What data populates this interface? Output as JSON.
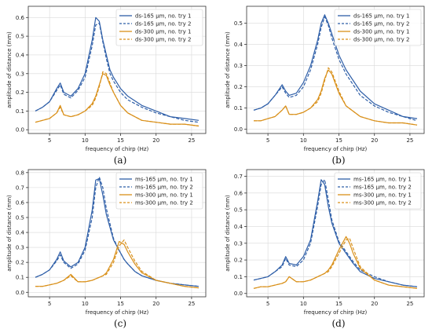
{
  "colors": {
    "blue": "#2f5fa8",
    "orange": "#d9901a"
  },
  "chart_data": [
    {
      "type": "line",
      "caption": "(a)",
      "xlabel": "frequency of chirp (Hz)",
      "ylabel": "amplitude of distance (mm)",
      "xlim": [
        2,
        27
      ],
      "ylim": [
        -0.02,
        0.66
      ],
      "xticks": [
        5,
        10,
        15,
        20,
        25
      ],
      "yticks": [
        0.0,
        0.1,
        0.2,
        0.3,
        0.4,
        0.5,
        0.6
      ],
      "grid": true,
      "legend_position": "top-right",
      "x": [
        3,
        4,
        5,
        6,
        6.5,
        7,
        8,
        9,
        10,
        11,
        11.5,
        12,
        12.5,
        13,
        13.5,
        14,
        15,
        16,
        18,
        20,
        22,
        24,
        26
      ],
      "series": [
        {
          "name": "ds-165 μm, no. try 1",
          "color": "blue",
          "dash": "solid",
          "values": [
            0.1,
            0.12,
            0.15,
            0.22,
            0.25,
            0.2,
            0.18,
            0.22,
            0.3,
            0.48,
            0.6,
            0.58,
            0.48,
            0.4,
            0.32,
            0.28,
            0.22,
            0.18,
            0.13,
            0.1,
            0.07,
            0.06,
            0.05
          ]
        },
        {
          "name": "ds-165 μm, no. try 2",
          "color": "blue",
          "dash": "dashed",
          "values": [
            0.1,
            0.12,
            0.15,
            0.21,
            0.24,
            0.19,
            0.17,
            0.21,
            0.28,
            0.45,
            0.56,
            0.57,
            0.47,
            0.38,
            0.3,
            0.26,
            0.2,
            0.16,
            0.12,
            0.09,
            0.07,
            0.05,
            0.04
          ]
        },
        {
          "name": "ds-300 μm, no. try 1",
          "color": "orange",
          "dash": "solid",
          "values": [
            0.04,
            0.05,
            0.06,
            0.09,
            0.13,
            0.08,
            0.07,
            0.08,
            0.1,
            0.14,
            0.18,
            0.24,
            0.3,
            0.29,
            0.24,
            0.2,
            0.13,
            0.09,
            0.05,
            0.04,
            0.03,
            0.03,
            0.02
          ]
        },
        {
          "name": "ds-300 μm, no. try 2",
          "color": "orange",
          "dash": "dashed",
          "values": [
            0.04,
            0.05,
            0.06,
            0.09,
            0.12,
            0.08,
            0.07,
            0.08,
            0.1,
            0.13,
            0.17,
            0.23,
            0.31,
            0.3,
            0.25,
            0.2,
            0.13,
            0.09,
            0.05,
            0.04,
            0.03,
            0.03,
            0.02
          ]
        }
      ]
    },
    {
      "type": "line",
      "caption": "(b)",
      "xlabel": "frequency of chirp (Hz)",
      "ylabel": "amplitude of distance (mm)",
      "xlim": [
        2,
        27
      ],
      "ylim": [
        -0.02,
        0.58
      ],
      "xticks": [
        5,
        10,
        15,
        20,
        25
      ],
      "yticks": [
        0.0,
        0.1,
        0.2,
        0.3,
        0.4,
        0.5
      ],
      "grid": true,
      "legend_position": "top-right",
      "x": [
        3,
        4,
        5,
        6,
        7,
        7.5,
        8,
        9,
        10,
        11,
        12,
        12.5,
        13,
        13.5,
        14,
        15,
        16,
        18,
        20,
        22,
        24,
        26
      ],
      "series": [
        {
          "name": "ds-165 μm, no. try 1",
          "color": "blue",
          "dash": "solid",
          "values": [
            0.09,
            0.1,
            0.12,
            0.16,
            0.21,
            0.18,
            0.16,
            0.17,
            0.22,
            0.3,
            0.42,
            0.5,
            0.54,
            0.5,
            0.45,
            0.35,
            0.28,
            0.18,
            0.12,
            0.09,
            0.06,
            0.05
          ]
        },
        {
          "name": "ds-165 μm, no. try 2",
          "color": "blue",
          "dash": "dashed",
          "values": [
            0.09,
            0.1,
            0.12,
            0.16,
            0.2,
            0.17,
            0.15,
            0.16,
            0.2,
            0.28,
            0.4,
            0.48,
            0.53,
            0.49,
            0.43,
            0.33,
            0.26,
            0.16,
            0.11,
            0.08,
            0.06,
            0.04
          ]
        },
        {
          "name": "ds-300 μm, no. try 1",
          "color": "orange",
          "dash": "solid",
          "values": [
            0.04,
            0.04,
            0.05,
            0.06,
            0.09,
            0.11,
            0.07,
            0.07,
            0.08,
            0.1,
            0.14,
            0.18,
            0.24,
            0.28,
            0.26,
            0.17,
            0.11,
            0.06,
            0.04,
            0.03,
            0.03,
            0.02
          ]
        },
        {
          "name": "ds-300 μm, no. try 2",
          "color": "orange",
          "dash": "dashed",
          "values": [
            0.04,
            0.04,
            0.05,
            0.06,
            0.09,
            0.11,
            0.07,
            0.07,
            0.08,
            0.1,
            0.13,
            0.17,
            0.23,
            0.29,
            0.27,
            0.18,
            0.11,
            0.06,
            0.04,
            0.03,
            0.03,
            0.02
          ]
        }
      ]
    },
    {
      "type": "line",
      "caption": "(c)",
      "xlabel": "frequency of chirp (Hz)",
      "ylabel": "amplitude of distance (mm)",
      "xlim": [
        2,
        27
      ],
      "ylim": [
        -0.03,
        0.82
      ],
      "xticks": [
        5,
        10,
        15,
        20,
        25
      ],
      "yticks": [
        0.0,
        0.1,
        0.2,
        0.3,
        0.4,
        0.5,
        0.6,
        0.7,
        0.8
      ],
      "grid": true,
      "legend_position": "top-right",
      "x": [
        3,
        4,
        5,
        6,
        6.5,
        7,
        8,
        9,
        10,
        11,
        11.5,
        12,
        12.5,
        13,
        14,
        14.8,
        15.5,
        16,
        17,
        18,
        20,
        22,
        24,
        26
      ],
      "series": [
        {
          "name": "ms-165 μm, no. try 1",
          "color": "blue",
          "dash": "solid",
          "values": [
            0.1,
            0.12,
            0.15,
            0.22,
            0.27,
            0.21,
            0.17,
            0.2,
            0.3,
            0.55,
            0.75,
            0.76,
            0.65,
            0.52,
            0.35,
            0.28,
            0.22,
            0.19,
            0.14,
            0.11,
            0.08,
            0.06,
            0.05,
            0.04
          ]
        },
        {
          "name": "ms-165 μm, no. try 2",
          "color": "blue",
          "dash": "dashed",
          "values": [
            0.1,
            0.12,
            0.15,
            0.21,
            0.25,
            0.2,
            0.16,
            0.19,
            0.28,
            0.5,
            0.7,
            0.77,
            0.7,
            0.56,
            0.36,
            0.28,
            0.22,
            0.19,
            0.14,
            0.11,
            0.08,
            0.06,
            0.05,
            0.04
          ]
        },
        {
          "name": "ms-300 μm, no. try 1",
          "color": "orange",
          "dash": "solid",
          "values": [
            0.04,
            0.04,
            0.05,
            0.06,
            0.07,
            0.08,
            0.12,
            0.07,
            0.07,
            0.08,
            0.09,
            0.1,
            0.11,
            0.13,
            0.22,
            0.34,
            0.32,
            0.27,
            0.19,
            0.13,
            0.08,
            0.06,
            0.04,
            0.03
          ]
        },
        {
          "name": "ms-300 μm, no. try 2",
          "color": "orange",
          "dash": "dashed",
          "values": [
            0.04,
            0.04,
            0.05,
            0.06,
            0.07,
            0.08,
            0.11,
            0.07,
            0.07,
            0.08,
            0.09,
            0.1,
            0.11,
            0.12,
            0.2,
            0.31,
            0.35,
            0.3,
            0.21,
            0.14,
            0.08,
            0.06,
            0.04,
            0.03
          ]
        }
      ]
    },
    {
      "type": "line",
      "caption": "(d)",
      "xlabel": "frequency of chirp (Hz)",
      "ylabel": "amplitude of distance (mm)",
      "xlim": [
        2,
        27
      ],
      "ylim": [
        -0.02,
        0.74
      ],
      "xticks": [
        5,
        10,
        15,
        20,
        25
      ],
      "yticks": [
        0.0,
        0.1,
        0.2,
        0.3,
        0.4,
        0.5,
        0.6,
        0.7
      ],
      "grid": true,
      "legend_position": "top-right",
      "x": [
        3,
        4,
        5,
        6,
        7,
        7.5,
        8,
        9,
        10,
        11,
        12,
        12.5,
        13,
        13.5,
        14,
        15,
        16,
        16.5,
        17,
        18,
        20,
        22,
        24,
        26
      ],
      "series": [
        {
          "name": "ms-165 μm, no. try 1",
          "color": "blue",
          "dash": "solid",
          "values": [
            0.08,
            0.09,
            0.1,
            0.13,
            0.17,
            0.22,
            0.18,
            0.17,
            0.22,
            0.32,
            0.55,
            0.68,
            0.65,
            0.52,
            0.42,
            0.3,
            0.24,
            0.21,
            0.18,
            0.13,
            0.09,
            0.07,
            0.05,
            0.04
          ]
        },
        {
          "name": "ms-165 μm, no. try 2",
          "color": "blue",
          "dash": "dashed",
          "values": [
            0.08,
            0.09,
            0.1,
            0.13,
            0.16,
            0.21,
            0.17,
            0.16,
            0.2,
            0.3,
            0.52,
            0.65,
            0.68,
            0.56,
            0.44,
            0.31,
            0.25,
            0.22,
            0.19,
            0.14,
            0.1,
            0.07,
            0.05,
            0.04
          ]
        },
        {
          "name": "ms-300 μm, no. try 1",
          "color": "orange",
          "dash": "solid",
          "values": [
            0.03,
            0.04,
            0.04,
            0.05,
            0.06,
            0.07,
            0.1,
            0.07,
            0.07,
            0.08,
            0.1,
            0.11,
            0.12,
            0.14,
            0.17,
            0.26,
            0.34,
            0.3,
            0.24,
            0.15,
            0.08,
            0.05,
            0.04,
            0.03
          ]
        },
        {
          "name": "ms-300 μm, no. try 2",
          "color": "orange",
          "dash": "dashed",
          "values": [
            0.03,
            0.04,
            0.04,
            0.05,
            0.06,
            0.07,
            0.1,
            0.07,
            0.07,
            0.08,
            0.1,
            0.11,
            0.12,
            0.13,
            0.16,
            0.24,
            0.32,
            0.33,
            0.27,
            0.16,
            0.08,
            0.05,
            0.04,
            0.03
          ]
        }
      ]
    }
  ]
}
